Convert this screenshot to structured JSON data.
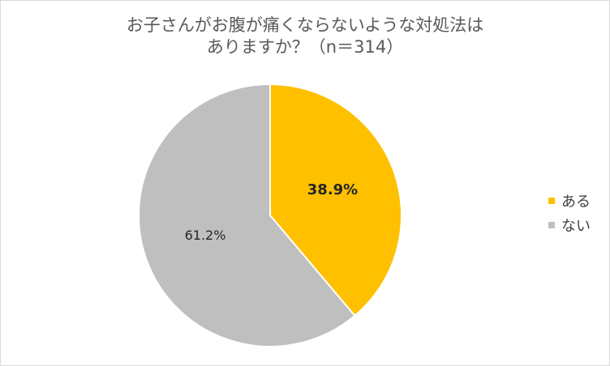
{
  "chart_data": {
    "type": "pie",
    "title": "お子さんがお腹が痛くならないような対処法は\nありますか？（n＝314）",
    "title_lines": [
      "お子さんがお腹が痛くならないような対処法は",
      "ありますか？（n＝314）"
    ],
    "categories": [
      "ある",
      "ない"
    ],
    "values": [
      38.9,
      61.2
    ],
    "labels": [
      "38.9%",
      "61.2%"
    ],
    "colors": [
      "#FFC000",
      "#BFBFBF"
    ],
    "start_angle": "12 o'clock, clockwise",
    "legend_position": "right"
  }
}
